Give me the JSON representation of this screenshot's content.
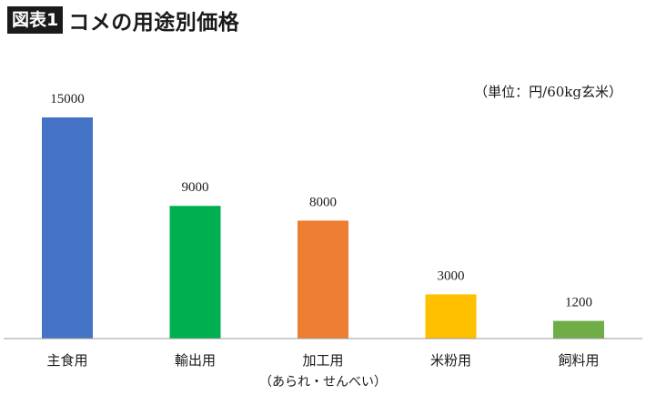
{
  "header": {
    "badge": "図表1",
    "title": "コメの用途別価格"
  },
  "chart_data": {
    "type": "bar",
    "title": "コメの用途別価格",
    "unit_note": "（単位：円/60kg玄米）",
    "categories": [
      "主食用",
      "輸出用",
      "加工用",
      "米粉用",
      "飼料用"
    ],
    "category_notes": [
      "",
      "",
      "（あられ・せんべい）",
      "",
      ""
    ],
    "values": [
      15000,
      9000,
      8000,
      3000,
      1200
    ],
    "value_labels": [
      "15000",
      "9000",
      "8000",
      "3000",
      "1200"
    ],
    "colors": [
      "#4472c4",
      "#00b050",
      "#ed7d31",
      "#ffc000",
      "#70ad47"
    ],
    "ylim": [
      0,
      16000
    ],
    "grid": false,
    "legend": "none",
    "xlabel": "",
    "ylabel": ""
  }
}
